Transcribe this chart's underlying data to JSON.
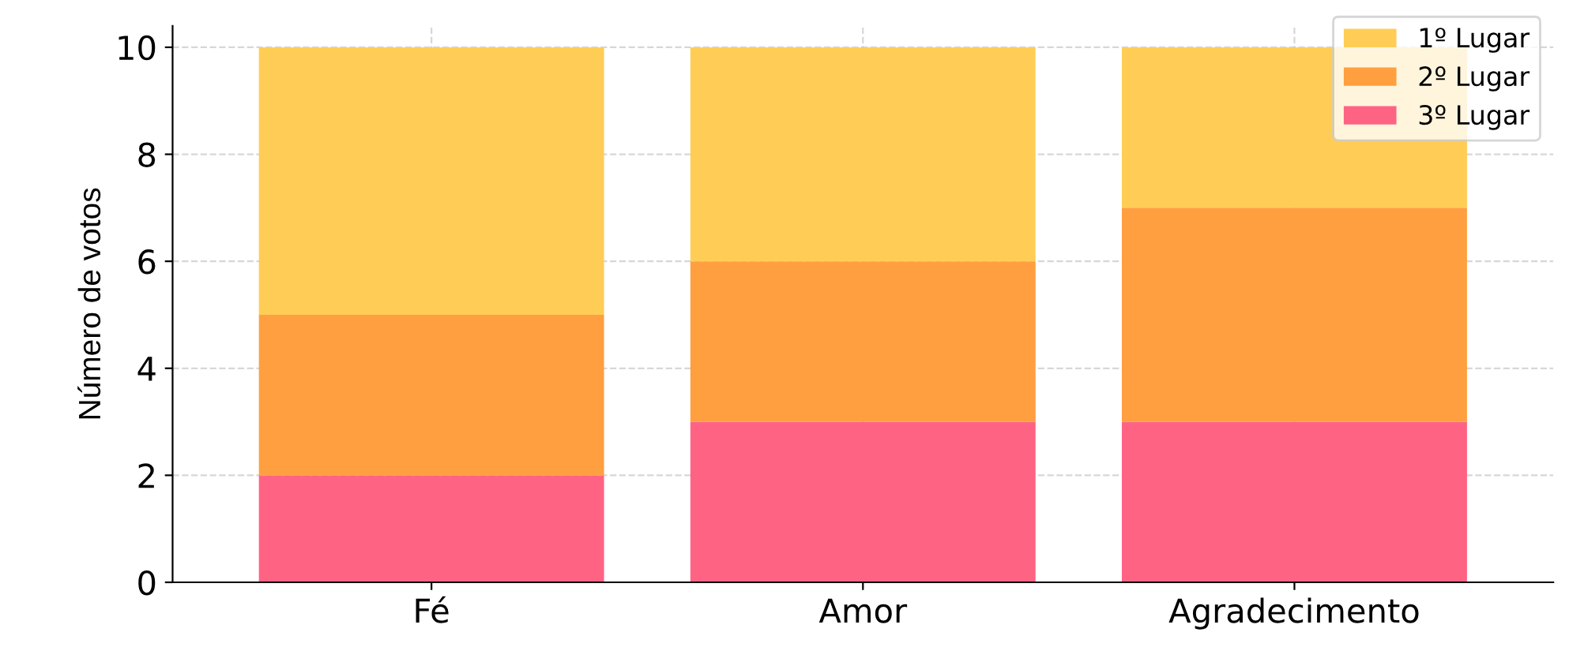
{
  "chart_data": {
    "type": "bar",
    "stacked": true,
    "ylabel": "Número de votos",
    "categories": [
      "Fé",
      "Amor",
      "Agradecimento"
    ],
    "series": [
      {
        "name": "3º Lugar",
        "color": "#ff6384",
        "values": [
          2,
          3,
          3
        ]
      },
      {
        "name": "2º Lugar",
        "color": "#ff9f40",
        "values": [
          3,
          3,
          4
        ]
      },
      {
        "name": "1º Lugar",
        "color": "#ffcd56",
        "values": [
          5,
          4,
          3
        ]
      }
    ],
    "ylim": [
      0,
      10.4
    ],
    "yticks": [
      0,
      2,
      4,
      6,
      8,
      10
    ],
    "grid": true,
    "legend": "top right"
  }
}
